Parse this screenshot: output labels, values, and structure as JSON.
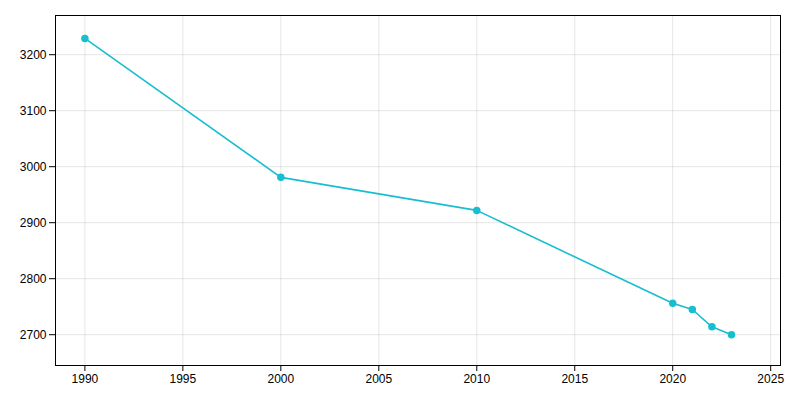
{
  "chart_data": {
    "type": "line",
    "x": [
      1990,
      2000,
      2010,
      2020,
      2021,
      2022,
      2023
    ],
    "values": [
      3229,
      2981,
      2922,
      2756,
      2745,
      2714,
      2700
    ],
    "color": "#17BECF",
    "marker": "circle",
    "xlim": [
      1988.5,
      2025.5
    ],
    "ylim": [
      2645,
      3270
    ],
    "xticks": [
      1990,
      1995,
      2000,
      2005,
      2010,
      2015,
      2020,
      2025
    ],
    "yticks": [
      2700,
      2800,
      2900,
      3000,
      3100,
      3200
    ],
    "grid": true
  }
}
